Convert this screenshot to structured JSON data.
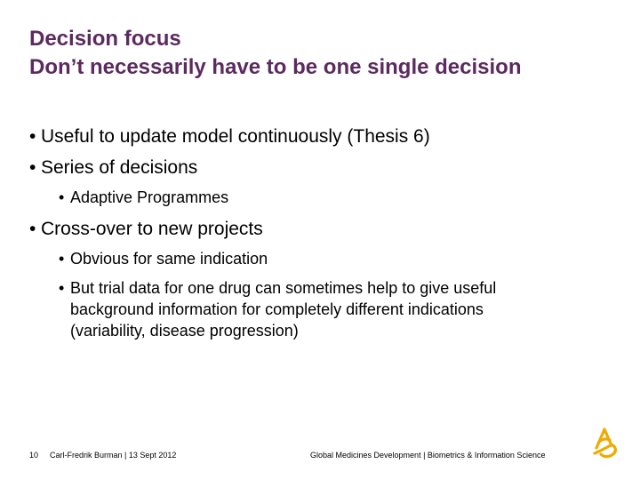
{
  "title": {
    "line1": "Decision focus",
    "line2": "Don’t necessarily have to be one single decision"
  },
  "bullets": [
    {
      "text": "Useful to update model continuously (Thesis 6)"
    },
    {
      "text": "Series of decisions",
      "sub": [
        {
          "text": "Adaptive Programmes"
        }
      ]
    },
    {
      "text": "Cross-over to new projects",
      "sub": [
        {
          "text": "Obvious for same indication"
        },
        {
          "text": "But trial data for one drug can sometimes help to give useful background information for completely different indications (variability, disease progression)"
        }
      ]
    }
  ],
  "footer": {
    "page_number": "10",
    "author_date": "Carl-Fredrik Burman | 13 Sept 2012",
    "department": "Global Medicines Development | Biometrics & Information Science"
  },
  "colors": {
    "title": "#5b2a5e",
    "logo": "#f0ab00"
  },
  "icons": {
    "logo": "astrazeneca-logo-icon"
  }
}
